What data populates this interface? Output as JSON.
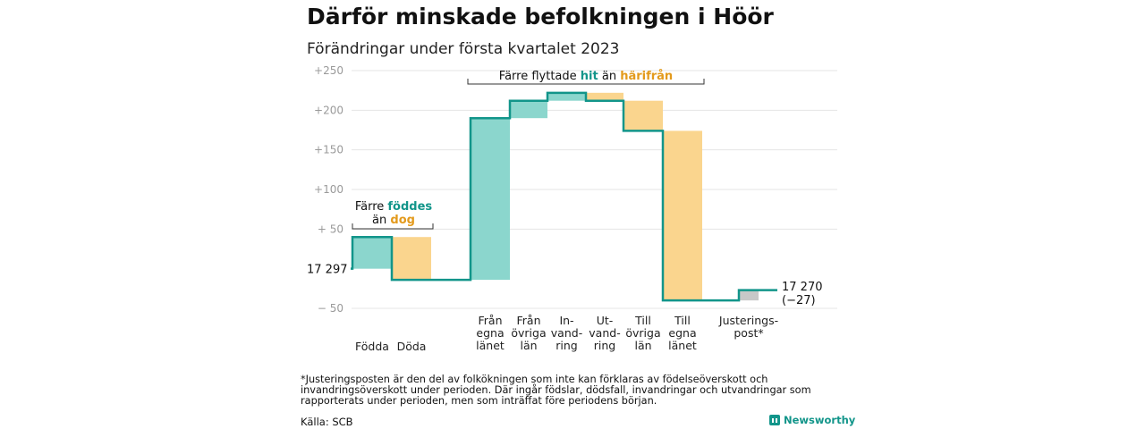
{
  "title": "Därför minskade befolkningen i Höör",
  "subtitle": "Förändringar under första kvartalet 2023",
  "chart_data": {
    "type": "waterfall",
    "start": {
      "value": 0,
      "label": "17 297"
    },
    "end": {
      "value": -27,
      "label_line1": "17 270",
      "label_line2": "(−27)"
    },
    "steps": [
      {
        "id": "fodda",
        "label": [
          "Födda"
        ],
        "delta": 40,
        "color": "#8bd6cd"
      },
      {
        "id": "doda",
        "label": [
          "Döda"
        ],
        "delta": -54,
        "color": "#fad58e"
      },
      {
        "id": "fran-egna-lanet",
        "label": [
          "Från",
          "egna",
          "länet"
        ],
        "delta": 204,
        "color": "#8bd6cd"
      },
      {
        "id": "fran-ovriga-lan",
        "label": [
          "Från",
          "övriga",
          "län"
        ],
        "delta": 22,
        "color": "#8bd6cd"
      },
      {
        "id": "invandring",
        "label": [
          "In-",
          "vand-",
          "ring"
        ],
        "delta": 10,
        "color": "#8bd6cd"
      },
      {
        "id": "utvandring",
        "label": [
          "Ut-",
          "vand-",
          "ring"
        ],
        "delta": -10,
        "color": "#fad58e"
      },
      {
        "id": "till-ovriga-lan",
        "label": [
          "Till",
          "övriga",
          "län"
        ],
        "delta": -38,
        "color": "#fad58e"
      },
      {
        "id": "till-egna-lanet",
        "label": [
          "Till",
          "egna",
          "länet"
        ],
        "delta": -214,
        "color": "#fad58e"
      },
      {
        "id": "justeringspost",
        "label": [
          "Justerings-",
          "post*"
        ],
        "delta": 13,
        "color": "#c8c8c8"
      }
    ],
    "y_ticks": [
      {
        "value": 250,
        "label": "+250"
      },
      {
        "value": 200,
        "label": "+200"
      },
      {
        "value": 150,
        "label": "+150"
      },
      {
        "value": 100,
        "label": "+100"
      },
      {
        "value": 50,
        "label": "+ 50"
      },
      {
        "value": -50,
        "label": "− 50"
      }
    ],
    "ylim": [
      -62,
      257
    ],
    "grid": true,
    "line_color": "#12958a",
    "annotations": {
      "births": {
        "line1": "Färre ",
        "line1_hl": "föddes",
        "line2": "än ",
        "line2_hl": "dog"
      },
      "migration": {
        "pre": "Färre flyttade ",
        "hl1": "hit",
        "mid": " än ",
        "hl2": "härifrån"
      }
    },
    "highlight_colors": {
      "in": "#12958a",
      "out": "#e39a1c"
    }
  },
  "footnote": "*Justeringsposten är den del av folkökningen som inte kan förklaras av födelseöverskott och invandringsöverskott under perioden. Där ingår födslar, dödsfall, invandringar och utvandringar som rapporterats under perioden, men som inträffat före periodens början.",
  "source": "Källa: SCB",
  "brand": "Newsworthy"
}
